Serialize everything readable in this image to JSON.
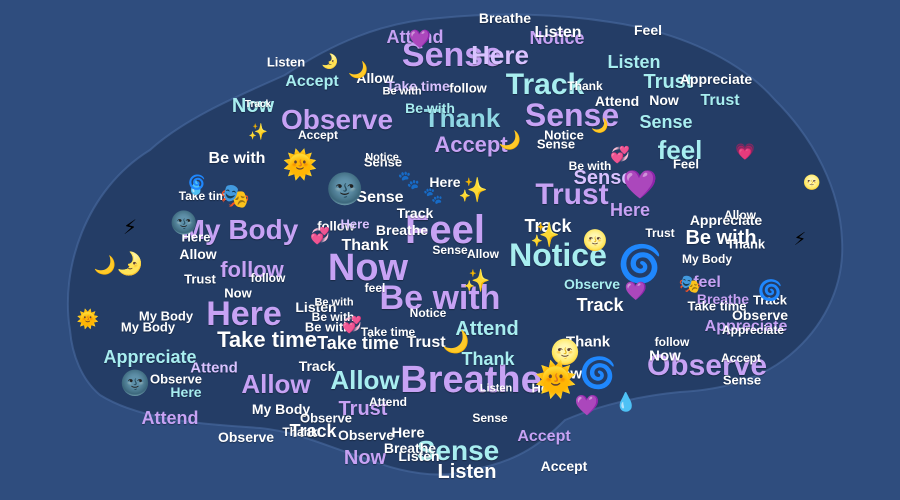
{
  "palette": [
    "#c7a2f4",
    "#a8eef0",
    "#ffffff",
    "#d9c2ff",
    "#8fd7e4"
  ],
  "background": "#2f4d7e",
  "words": [
    {
      "t": "Sense"
    },
    {
      "t": "Here"
    },
    {
      "t": "Track"
    },
    {
      "t": "Attend"
    },
    {
      "t": "Breathe"
    },
    {
      "t": "Notice"
    },
    {
      "t": "Listen"
    },
    {
      "t": "Accept"
    },
    {
      "t": "Allow"
    },
    {
      "t": "Take time"
    },
    {
      "t": "follow"
    },
    {
      "t": "Listen"
    },
    {
      "t": "Trust"
    },
    {
      "t": "Now"
    },
    {
      "t": "Observe"
    },
    {
      "t": "Be with"
    },
    {
      "t": "Thank"
    },
    {
      "t": "Accept"
    },
    {
      "t": "Sense"
    },
    {
      "t": "Sense"
    },
    {
      "t": "feel"
    },
    {
      "t": "Be with"
    },
    {
      "t": "Trust"
    },
    {
      "t": "Feel"
    },
    {
      "t": "Here"
    },
    {
      "t": "Track"
    },
    {
      "t": "Be with"
    },
    {
      "t": "My Body"
    },
    {
      "t": "follow"
    },
    {
      "t": "Now"
    },
    {
      "t": "Notice"
    },
    {
      "t": "Be with"
    },
    {
      "t": "Thank"
    },
    {
      "t": "follow"
    },
    {
      "t": "Here"
    },
    {
      "t": "Take time"
    },
    {
      "t": "Take time"
    },
    {
      "t": "Be with"
    },
    {
      "t": "Attend"
    },
    {
      "t": "Track"
    },
    {
      "t": "feel"
    },
    {
      "t": "Appreciate"
    },
    {
      "t": "Allow"
    },
    {
      "t": "Breathe"
    },
    {
      "t": "Here"
    },
    {
      "t": "Listen"
    },
    {
      "t": "Observe"
    },
    {
      "t": "Allow"
    },
    {
      "t": "Attend"
    },
    {
      "t": "My Body"
    },
    {
      "t": "Trust"
    },
    {
      "t": "Track"
    },
    {
      "t": "Sense"
    },
    {
      "t": "Listen"
    },
    {
      "t": "Now"
    },
    {
      "t": "Observe"
    },
    {
      "t": "Accept"
    },
    {
      "t": "Here"
    },
    {
      "t": "Thank"
    },
    {
      "t": "Trust"
    },
    {
      "t": "Breathe"
    },
    {
      "t": "Thank"
    },
    {
      "t": "Listen"
    },
    {
      "t": "Notice"
    },
    {
      "t": "Appreciate"
    },
    {
      "t": "Observe"
    },
    {
      "t": "Sense"
    },
    {
      "t": "Feel"
    },
    {
      "t": "Allow"
    },
    {
      "t": "My Body"
    },
    {
      "t": "Track"
    },
    {
      "t": "Now"
    },
    {
      "t": "Attend"
    },
    {
      "t": "Observe"
    },
    {
      "t": "Listen"
    },
    {
      "t": "Accept"
    },
    {
      "t": "Sense"
    },
    {
      "t": "Appreciate"
    },
    {
      "t": "Be with"
    },
    {
      "t": "Track"
    },
    {
      "t": "Feel"
    },
    {
      "t": "Here"
    },
    {
      "t": "follow"
    },
    {
      "t": "Sense"
    },
    {
      "t": "Thank"
    },
    {
      "t": "Trust"
    },
    {
      "t": "Now"
    },
    {
      "t": "Observe"
    },
    {
      "t": "Allow"
    },
    {
      "t": "Here"
    },
    {
      "t": "Track"
    },
    {
      "t": "Sense"
    },
    {
      "t": "Breathe"
    },
    {
      "t": "Trust"
    },
    {
      "t": "My Body"
    },
    {
      "t": "Be with"
    },
    {
      "t": "Take time"
    },
    {
      "t": "Thank"
    },
    {
      "t": "Listen"
    },
    {
      "t": "Attend"
    },
    {
      "t": "Notice"
    },
    {
      "t": "Take time"
    },
    {
      "t": "Appreciate"
    },
    {
      "t": "Sense"
    },
    {
      "t": "Here"
    },
    {
      "t": "follow"
    },
    {
      "t": "Allow"
    },
    {
      "t": "Accept"
    },
    {
      "t": "Observe"
    },
    {
      "t": "Attend"
    },
    {
      "t": "Track"
    },
    {
      "t": "Take time"
    },
    {
      "t": "Be with"
    },
    {
      "t": "Breathe"
    },
    {
      "t": "Sense"
    },
    {
      "t": "Thank"
    },
    {
      "t": "Now"
    },
    {
      "t": "Notice"
    },
    {
      "t": "feel"
    },
    {
      "t": "Accept"
    },
    {
      "t": "Appreciate"
    },
    {
      "t": "Trust"
    },
    {
      "t": "Be with"
    },
    {
      "t": "Observe"
    },
    {
      "t": "My Body"
    },
    {
      "t": "Allow"
    },
    {
      "t": "Here"
    },
    {
      "t": "Sense"
    }
  ],
  "emojis": [
    {
      "g": "💜"
    },
    {
      "g": "🌙"
    },
    {
      "g": "🌙"
    },
    {
      "g": "✨"
    },
    {
      "g": "💞"
    },
    {
      "g": "🌞"
    },
    {
      "g": "🌚"
    },
    {
      "g": "🌛"
    },
    {
      "g": "💜"
    },
    {
      "g": "🐾"
    },
    {
      "g": "✨"
    },
    {
      "g": "🌀"
    },
    {
      "g": "🌝"
    },
    {
      "g": "🌀"
    },
    {
      "g": "🎭"
    },
    {
      "g": "🌚"
    },
    {
      "g": "⚡"
    },
    {
      "g": "🌙"
    },
    {
      "g": "🌀"
    },
    {
      "g": "💞"
    },
    {
      "g": "🌝"
    },
    {
      "g": "🌙"
    },
    {
      "g": "✨"
    },
    {
      "g": "🌞"
    },
    {
      "g": "💜"
    },
    {
      "g": "💧"
    },
    {
      "g": "🌚"
    },
    {
      "g": "💗"
    },
    {
      "g": "🎭"
    },
    {
      "g": "⚡"
    },
    {
      "g": "🌛"
    },
    {
      "g": "💧"
    },
    {
      "g": "🐾"
    },
    {
      "g": "🌀"
    },
    {
      "g": "💜"
    },
    {
      "g": "✨"
    },
    {
      "g": "🌙"
    },
    {
      "g": "🌝"
    },
    {
      "g": "💞"
    },
    {
      "g": "🌞"
    }
  ]
}
